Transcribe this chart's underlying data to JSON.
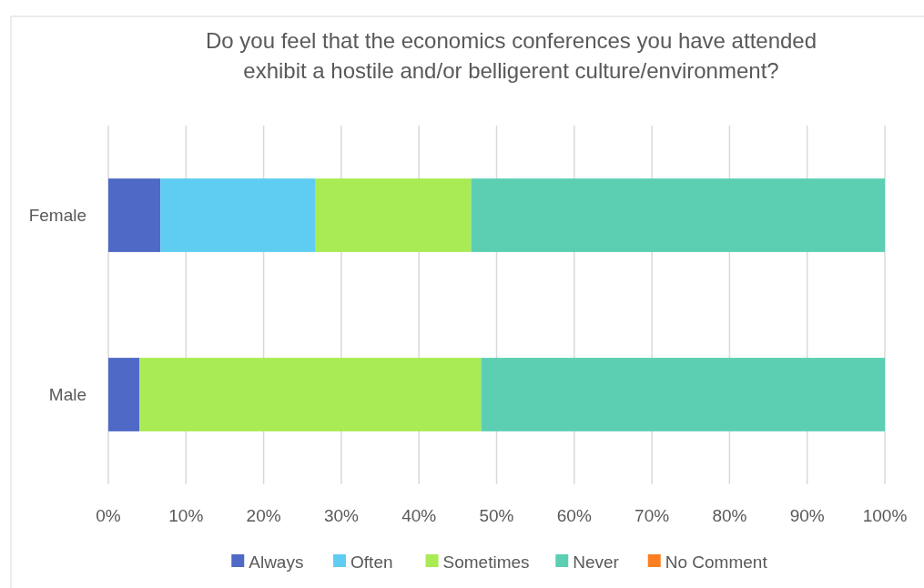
{
  "chart_data": {
    "type": "bar",
    "orientation": "horizontal",
    "stacked": true,
    "title": "Do you feel that the economics conferences you have attended exhibit a hostile and/or belligerent culture/environment?",
    "categories": [
      "Female",
      "Male"
    ],
    "series": [
      {
        "name": "Always",
        "color": "#4f69c6",
        "values": [
          6.7,
          4
        ]
      },
      {
        "name": "Often",
        "color": "#5fcdf1",
        "values": [
          20,
          0
        ]
      },
      {
        "name": "Sometimes",
        "color": "#a9eb54",
        "values": [
          20,
          44
        ]
      },
      {
        "name": "Never",
        "color": "#5ccfb2",
        "values": [
          53.3,
          52
        ]
      },
      {
        "name": "No Comment",
        "color": "#fb7f21",
        "values": [
          0,
          0
        ]
      }
    ],
    "xlim": [
      0,
      100
    ],
    "xticks": [
      {
        "value": 0,
        "label": "0%"
      },
      {
        "value": 10,
        "label": "10%"
      },
      {
        "value": 20,
        "label": "20%"
      },
      {
        "value": 30,
        "label": "30%"
      },
      {
        "value": 40,
        "label": "40%"
      },
      {
        "value": 50,
        "label": "50%"
      },
      {
        "value": 60,
        "label": "60%"
      },
      {
        "value": 70,
        "label": "70%"
      },
      {
        "value": 80,
        "label": "80%"
      },
      {
        "value": 90,
        "label": "90%"
      },
      {
        "value": 100,
        "label": "100%"
      }
    ],
    "grid": "x",
    "legend": "bottom"
  }
}
